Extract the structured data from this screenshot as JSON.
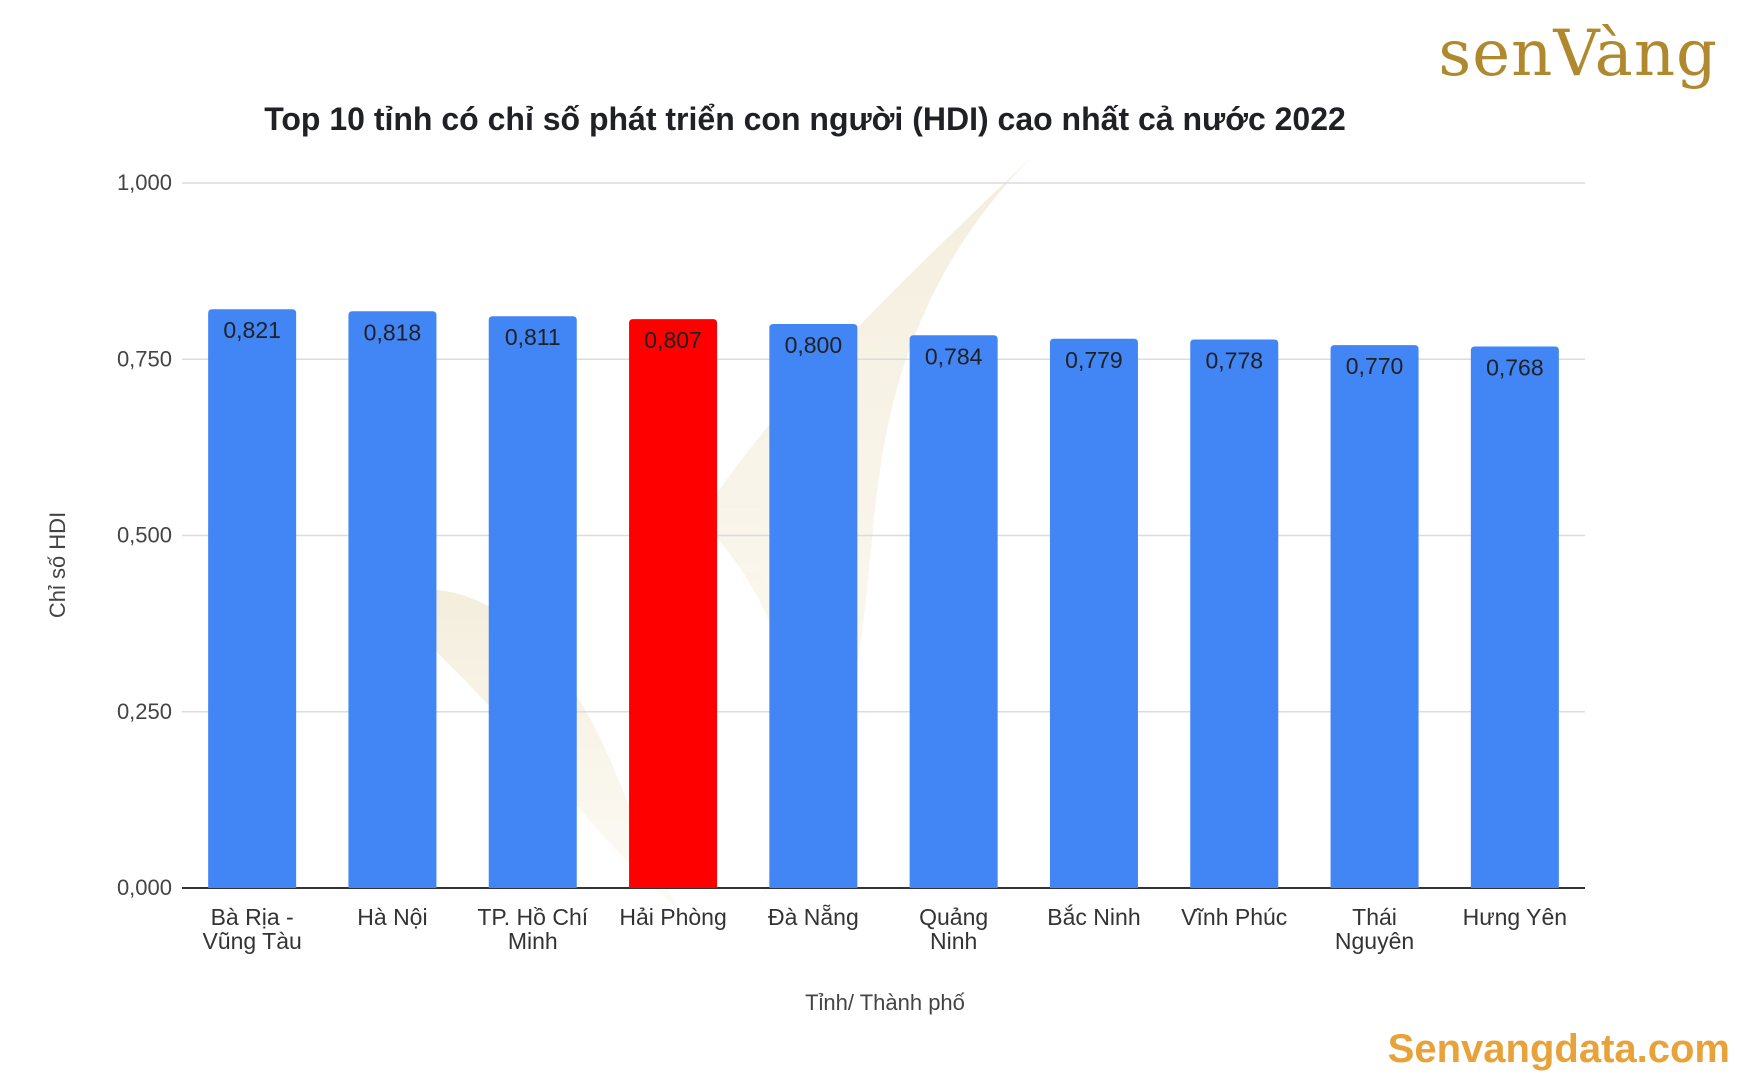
{
  "brand": {
    "logo_text": "senVàng",
    "website": "Senvangdata.com"
  },
  "colors": {
    "bar": "#4285f4",
    "highlight": "#ff0000",
    "gold": "#b0892e",
    "website": "#e8a23a"
  },
  "chart_data": {
    "type": "bar",
    "title": "Top 10 tỉnh có chỉ số phát triển con người (HDI) cao nhất cả nước 2022",
    "xlabel": "Tỉnh/ Thành phố",
    "ylabel": "Chỉ số HDI",
    "ylim": [
      0,
      1
    ],
    "yticks": [
      "0,000",
      "0,250",
      "0,500",
      "0,750",
      "1,000"
    ],
    "grid": true,
    "categories": [
      [
        "Bà Rịa -",
        "Vũng Tàu"
      ],
      [
        "Hà Nội"
      ],
      [
        "TP. Hồ Chí",
        "Minh"
      ],
      [
        "Hải Phòng"
      ],
      [
        "Đà Nẵng"
      ],
      [
        "Quảng",
        "Ninh"
      ],
      [
        "Bắc Ninh"
      ],
      [
        "Vĩnh Phúc"
      ],
      [
        "Thái",
        "Nguyên"
      ],
      [
        "Hưng Yên"
      ]
    ],
    "values": [
      0.821,
      0.818,
      0.811,
      0.807,
      0.8,
      0.784,
      0.779,
      0.778,
      0.77,
      0.768
    ],
    "value_labels": [
      "0,821",
      "0,818",
      "0,811",
      "0,807",
      "0,800",
      "0,784",
      "0,779",
      "0,778",
      "0,770",
      "0,768"
    ],
    "highlight_index": 3
  }
}
